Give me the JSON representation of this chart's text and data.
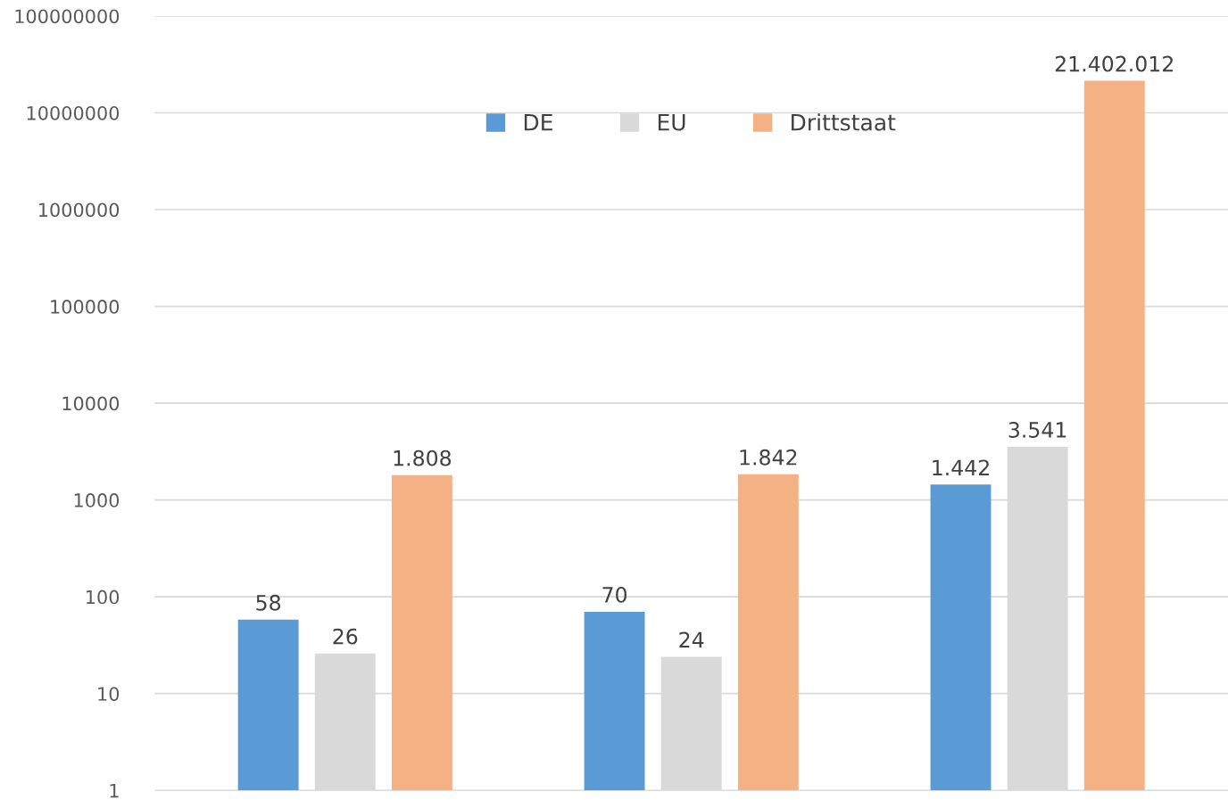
{
  "chart_data": {
    "type": "bar",
    "categories": [
      null,
      null,
      null
    ],
    "series": [
      {
        "name": "DE",
        "color": "#5b9bd5",
        "values": [
          58,
          70,
          1442
        ],
        "value_labels": [
          "58",
          "70",
          "1.442"
        ]
      },
      {
        "name": "EU",
        "color": "#d9d9d9",
        "values": [
          26,
          24,
          3541
        ],
        "value_labels": [
          "26",
          "24",
          "3.541"
        ]
      },
      {
        "name": "Drittstaat",
        "color": "#f4b183",
        "values": [
          1808,
          1842,
          21402012
        ],
        "value_labels": [
          "1.808",
          "1.842",
          "21.402.012"
        ]
      }
    ],
    "log": "y",
    "ylim": [
      1,
      100000000
    ],
    "yticks": [
      1,
      10,
      100,
      1000,
      10000,
      100000,
      1000000,
      10000000,
      100000000
    ],
    "grid": "y",
    "legend": "top"
  }
}
